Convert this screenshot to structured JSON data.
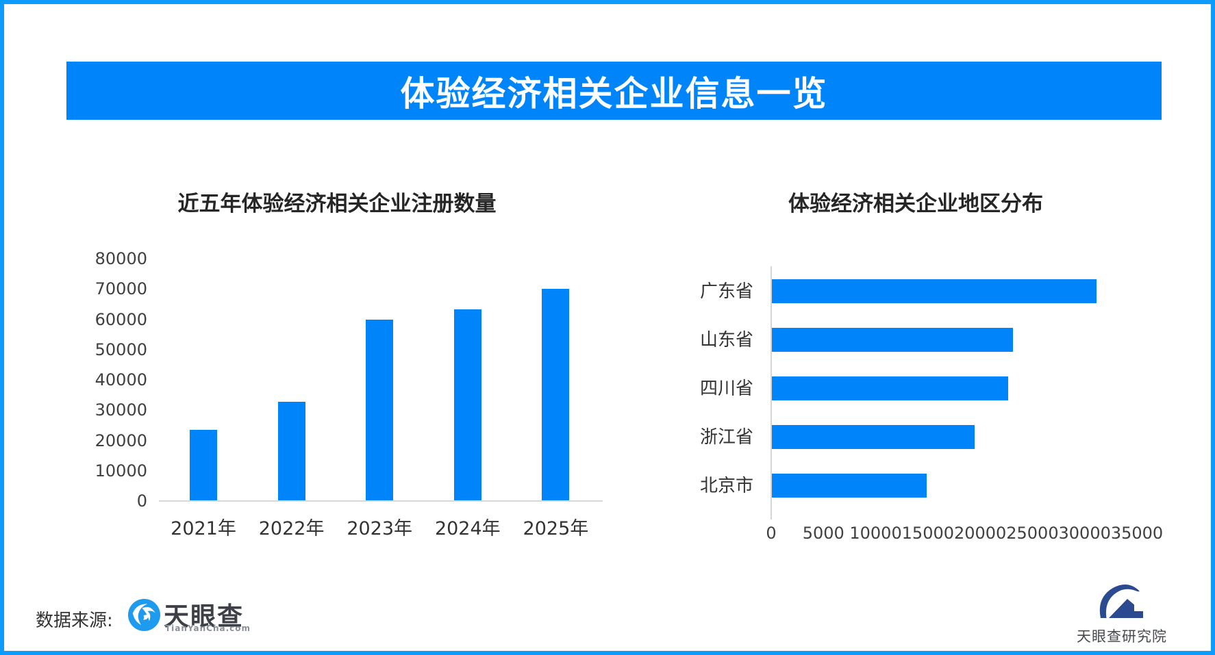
{
  "banner": {
    "title": "体验经济相关企业信息一览"
  },
  "footer": {
    "source_label": "数据来源:",
    "tianyancha_name": "天眼查",
    "tianyancha_domain": "TianYanCha.com",
    "research_institute": "天眼查研究院"
  },
  "colors": {
    "accent_blue": "#0084fa",
    "border_blue": "#0d9bff",
    "logo_blue": "#1e9bef",
    "logo_navy": "#2b4a8f",
    "axis_grey": "#d9d9d9"
  },
  "chart_data": [
    {
      "type": "bar",
      "title": "近五年体验经济相关企业注册数量",
      "categories": [
        "2021年",
        "2022年",
        "2023年",
        "2024年",
        "2025年"
      ],
      "values": [
        23500,
        32700,
        60000,
        63200,
        70000
      ],
      "ylabel": "",
      "xlabel": "",
      "ylim": [
        0,
        80000
      ],
      "ytick_step": 10000,
      "grid": false,
      "bar_color": "#0084fa"
    },
    {
      "type": "horizontal-bar",
      "title": "体验经济相关企业地区分布",
      "categories": [
        "广东省",
        "山东省",
        "四川省",
        "浙江省",
        "北京市"
      ],
      "values": [
        31100,
        23100,
        22600,
        19400,
        14800
      ],
      "ylabel": "",
      "xlabel": "",
      "xlim": [
        0,
        35000
      ],
      "xtick_step": 5000,
      "grid": false,
      "bar_color": "#0084fa"
    }
  ]
}
